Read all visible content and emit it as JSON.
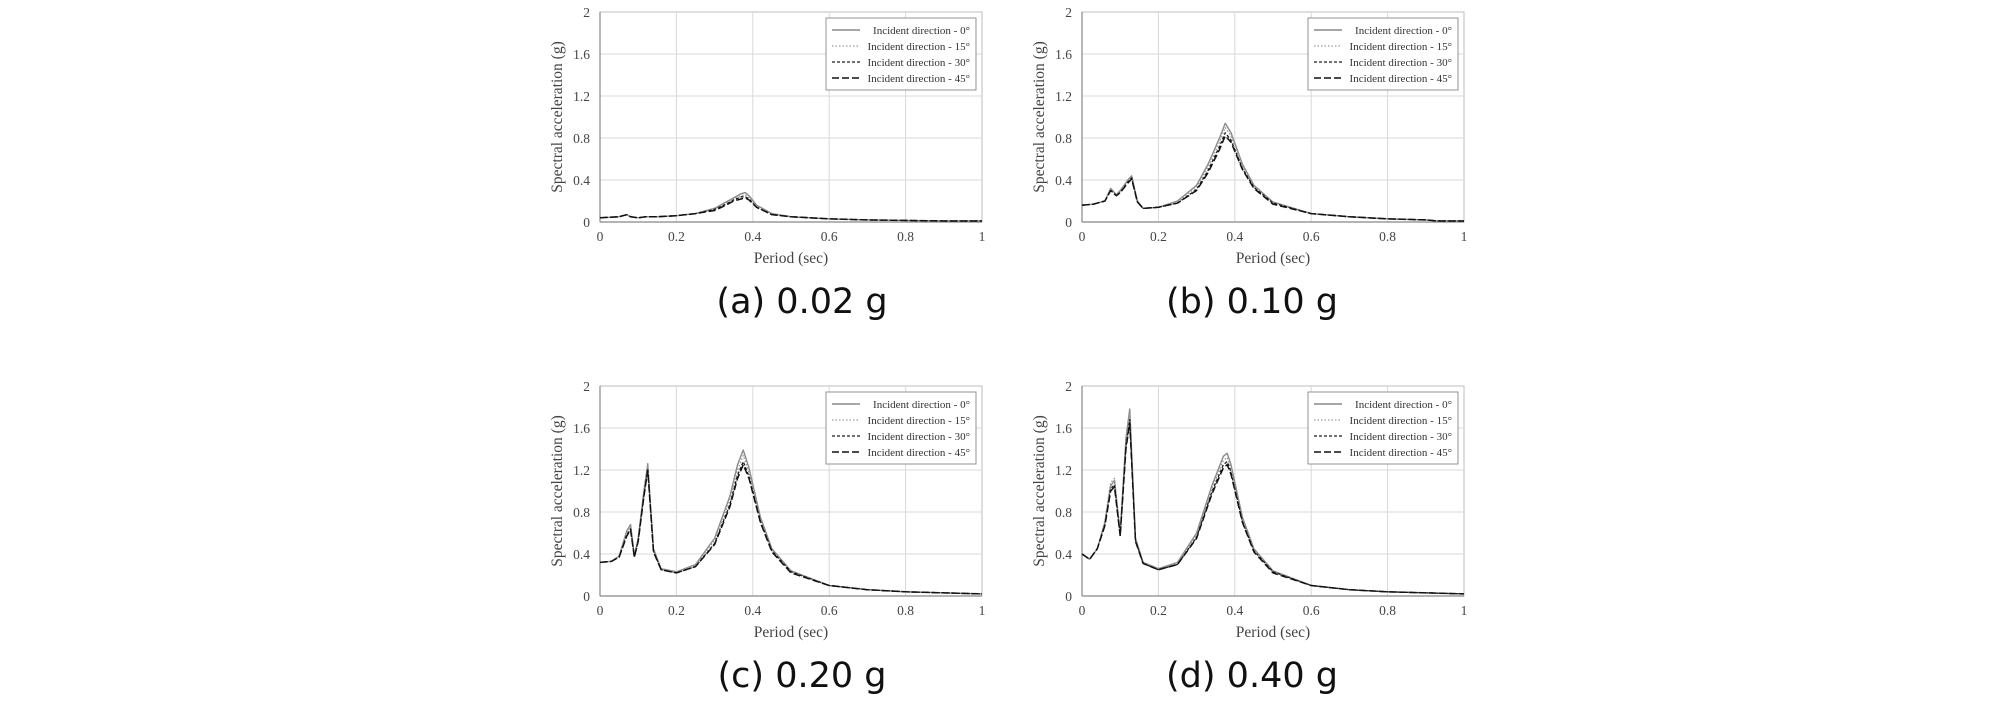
{
  "figure": {
    "captions": [
      "(a) 0.02 g",
      "(b) 0.10 g",
      "(c) 0.20 g",
      "(d) 0.40 g"
    ]
  },
  "chart_data": [
    {
      "type": "line",
      "caption": "(a) 0.02 g",
      "xlabel": "Period (sec)",
      "ylabel": "Spectral acceleration (g)",
      "xlim": [
        0,
        1
      ],
      "ylim": [
        0,
        2
      ],
      "xticks": [
        "0",
        "0.2",
        "0.4",
        "0.6",
        "0.8",
        "1"
      ],
      "yticks": [
        "0",
        "0.4",
        "0.8",
        "1.2",
        "1.6",
        "2"
      ],
      "grid": true,
      "legend_position": "top-right",
      "series": [
        {
          "name": "Incident direction - 0°",
          "style": "solid-gray",
          "x": [
            0,
            0.05,
            0.07,
            0.08,
            0.1,
            0.12,
            0.15,
            0.2,
            0.25,
            0.3,
            0.33,
            0.35,
            0.37,
            0.38,
            0.39,
            0.41,
            0.45,
            0.5,
            0.6,
            0.7,
            0.8,
            0.9,
            1.0
          ],
          "y": [
            0.04,
            0.05,
            0.07,
            0.05,
            0.04,
            0.05,
            0.05,
            0.06,
            0.08,
            0.13,
            0.19,
            0.23,
            0.27,
            0.28,
            0.25,
            0.16,
            0.08,
            0.05,
            0.03,
            0.02,
            0.015,
            0.01,
            0.01
          ]
        },
        {
          "name": "Incident direction - 15°",
          "style": "dotted-gray",
          "x": [
            0,
            0.05,
            0.07,
            0.08,
            0.1,
            0.12,
            0.15,
            0.2,
            0.25,
            0.3,
            0.33,
            0.35,
            0.37,
            0.38,
            0.39,
            0.41,
            0.45,
            0.5,
            0.6,
            0.7,
            0.8,
            0.9,
            1.0
          ],
          "y": [
            0.04,
            0.05,
            0.07,
            0.05,
            0.04,
            0.05,
            0.05,
            0.06,
            0.08,
            0.12,
            0.18,
            0.22,
            0.25,
            0.26,
            0.23,
            0.15,
            0.08,
            0.05,
            0.03,
            0.02,
            0.015,
            0.01,
            0.01
          ]
        },
        {
          "name": "Incident direction - 30°",
          "style": "dashed-black",
          "x": [
            0,
            0.05,
            0.07,
            0.08,
            0.1,
            0.12,
            0.15,
            0.2,
            0.25,
            0.3,
            0.33,
            0.35,
            0.37,
            0.38,
            0.39,
            0.41,
            0.45,
            0.5,
            0.6,
            0.7,
            0.8,
            0.9,
            1.0
          ],
          "y": [
            0.04,
            0.05,
            0.07,
            0.05,
            0.04,
            0.05,
            0.05,
            0.06,
            0.08,
            0.12,
            0.17,
            0.21,
            0.24,
            0.24,
            0.22,
            0.14,
            0.07,
            0.05,
            0.03,
            0.02,
            0.015,
            0.01,
            0.01
          ]
        },
        {
          "name": "Incident direction - 45°",
          "style": "longdash-black",
          "x": [
            0,
            0.05,
            0.07,
            0.08,
            0.1,
            0.12,
            0.15,
            0.2,
            0.25,
            0.3,
            0.33,
            0.35,
            0.37,
            0.38,
            0.39,
            0.41,
            0.45,
            0.5,
            0.6,
            0.7,
            0.8,
            0.9,
            1.0
          ],
          "y": [
            0.04,
            0.05,
            0.07,
            0.05,
            0.04,
            0.05,
            0.05,
            0.06,
            0.08,
            0.11,
            0.16,
            0.2,
            0.22,
            0.23,
            0.21,
            0.14,
            0.07,
            0.05,
            0.03,
            0.02,
            0.015,
            0.01,
            0.01
          ]
        }
      ]
    },
    {
      "type": "line",
      "caption": "(b) 0.10 g",
      "xlabel": "Period (sec)",
      "ylabel": "Spectral acceleration (g)",
      "xlim": [
        0,
        1
      ],
      "ylim": [
        0,
        2
      ],
      "xticks": [
        "0",
        "0.2",
        "0.4",
        "0.6",
        "0.8",
        "1"
      ],
      "yticks": [
        "0",
        "0.4",
        "0.8",
        "1.2",
        "1.6",
        "2"
      ],
      "grid": true,
      "legend_position": "top-right",
      "series": [
        {
          "name": "Incident direction - 0°",
          "style": "solid-gray",
          "x": [
            0,
            0.03,
            0.06,
            0.075,
            0.09,
            0.1,
            0.12,
            0.13,
            0.145,
            0.16,
            0.2,
            0.25,
            0.3,
            0.33,
            0.36,
            0.375,
            0.39,
            0.42,
            0.45,
            0.5,
            0.6,
            0.7,
            0.8,
            0.9,
            0.93,
            1.0
          ],
          "y": [
            0.16,
            0.17,
            0.2,
            0.32,
            0.26,
            0.3,
            0.4,
            0.44,
            0.2,
            0.13,
            0.14,
            0.2,
            0.35,
            0.55,
            0.8,
            0.94,
            0.85,
            0.55,
            0.35,
            0.19,
            0.08,
            0.05,
            0.03,
            0.02,
            0.01,
            0.01
          ]
        },
        {
          "name": "Incident direction - 15°",
          "style": "dotted-gray",
          "x": [
            0,
            0.03,
            0.06,
            0.075,
            0.09,
            0.1,
            0.12,
            0.13,
            0.145,
            0.16,
            0.2,
            0.25,
            0.3,
            0.33,
            0.36,
            0.375,
            0.39,
            0.42,
            0.45,
            0.5,
            0.6,
            0.7,
            0.8,
            0.9,
            0.93,
            1.0
          ],
          "y": [
            0.16,
            0.17,
            0.2,
            0.31,
            0.26,
            0.29,
            0.39,
            0.43,
            0.2,
            0.13,
            0.14,
            0.19,
            0.33,
            0.52,
            0.76,
            0.9,
            0.82,
            0.53,
            0.34,
            0.18,
            0.08,
            0.05,
            0.03,
            0.02,
            0.01,
            0.01
          ]
        },
        {
          "name": "Incident direction - 30°",
          "style": "dashed-black",
          "x": [
            0,
            0.03,
            0.06,
            0.075,
            0.09,
            0.1,
            0.12,
            0.13,
            0.145,
            0.16,
            0.2,
            0.25,
            0.3,
            0.33,
            0.36,
            0.375,
            0.39,
            0.42,
            0.45,
            0.5,
            0.6,
            0.7,
            0.8,
            0.9,
            0.93,
            1.0
          ],
          "y": [
            0.16,
            0.17,
            0.2,
            0.3,
            0.25,
            0.28,
            0.38,
            0.42,
            0.19,
            0.13,
            0.14,
            0.18,
            0.31,
            0.49,
            0.72,
            0.85,
            0.78,
            0.51,
            0.33,
            0.18,
            0.08,
            0.05,
            0.03,
            0.02,
            0.01,
            0.01
          ]
        },
        {
          "name": "Incident direction - 45°",
          "style": "longdash-black",
          "x": [
            0,
            0.03,
            0.06,
            0.075,
            0.09,
            0.1,
            0.12,
            0.13,
            0.145,
            0.16,
            0.2,
            0.25,
            0.3,
            0.33,
            0.36,
            0.375,
            0.39,
            0.42,
            0.45,
            0.5,
            0.6,
            0.7,
            0.8,
            0.9,
            0.93,
            1.0
          ],
          "y": [
            0.16,
            0.17,
            0.2,
            0.3,
            0.25,
            0.28,
            0.37,
            0.41,
            0.19,
            0.13,
            0.14,
            0.18,
            0.3,
            0.47,
            0.69,
            0.82,
            0.76,
            0.5,
            0.32,
            0.17,
            0.08,
            0.05,
            0.03,
            0.02,
            0.01,
            0.01
          ]
        }
      ]
    },
    {
      "type": "line",
      "caption": "(c) 0.20 g",
      "xlabel": "Period (sec)",
      "ylabel": "Spectral acceleration (g)",
      "xlim": [
        0,
        1
      ],
      "ylim": [
        0,
        2
      ],
      "xticks": [
        "0",
        "0.2",
        "0.4",
        "0.6",
        "0.8",
        "1"
      ],
      "yticks": [
        "0",
        "0.4",
        "0.8",
        "1.2",
        "1.6",
        "2"
      ],
      "grid": true,
      "legend_position": "top-right",
      "series": [
        {
          "name": "Incident direction - 0°",
          "style": "solid-gray",
          "x": [
            0,
            0.03,
            0.05,
            0.07,
            0.08,
            0.09,
            0.1,
            0.115,
            0.125,
            0.14,
            0.16,
            0.2,
            0.25,
            0.3,
            0.34,
            0.36,
            0.375,
            0.39,
            0.42,
            0.45,
            0.5,
            0.6,
            0.7,
            0.8,
            0.9,
            1.0
          ],
          "y": [
            0.32,
            0.33,
            0.38,
            0.62,
            0.68,
            0.38,
            0.55,
            1.0,
            1.26,
            0.45,
            0.26,
            0.23,
            0.3,
            0.55,
            0.95,
            1.25,
            1.39,
            1.22,
            0.75,
            0.45,
            0.24,
            0.1,
            0.06,
            0.04,
            0.03,
            0.02
          ]
        },
        {
          "name": "Incident direction - 15°",
          "style": "dotted-gray",
          "x": [
            0,
            0.03,
            0.05,
            0.07,
            0.08,
            0.09,
            0.1,
            0.115,
            0.125,
            0.14,
            0.16,
            0.2,
            0.25,
            0.3,
            0.34,
            0.36,
            0.375,
            0.39,
            0.42,
            0.45,
            0.5,
            0.6,
            0.7,
            0.8,
            0.9,
            1.0
          ],
          "y": [
            0.32,
            0.33,
            0.38,
            0.6,
            0.66,
            0.38,
            0.54,
            0.98,
            1.24,
            0.44,
            0.26,
            0.23,
            0.29,
            0.53,
            0.91,
            1.2,
            1.34,
            1.18,
            0.73,
            0.44,
            0.23,
            0.1,
            0.06,
            0.04,
            0.03,
            0.02
          ]
        },
        {
          "name": "Incident direction - 30°",
          "style": "dashed-black",
          "x": [
            0,
            0.03,
            0.05,
            0.07,
            0.08,
            0.09,
            0.1,
            0.115,
            0.125,
            0.14,
            0.16,
            0.2,
            0.25,
            0.3,
            0.34,
            0.36,
            0.375,
            0.39,
            0.42,
            0.45,
            0.5,
            0.6,
            0.7,
            0.8,
            0.9,
            1.0
          ],
          "y": [
            0.32,
            0.33,
            0.37,
            0.58,
            0.64,
            0.37,
            0.53,
            0.96,
            1.21,
            0.43,
            0.25,
            0.22,
            0.28,
            0.5,
            0.87,
            1.15,
            1.28,
            1.14,
            0.71,
            0.43,
            0.23,
            0.1,
            0.06,
            0.04,
            0.03,
            0.02
          ]
        },
        {
          "name": "Incident direction - 45°",
          "style": "longdash-black",
          "x": [
            0,
            0.03,
            0.05,
            0.07,
            0.08,
            0.09,
            0.1,
            0.115,
            0.125,
            0.14,
            0.16,
            0.2,
            0.25,
            0.3,
            0.34,
            0.36,
            0.375,
            0.39,
            0.42,
            0.45,
            0.5,
            0.6,
            0.7,
            0.8,
            0.9,
            1.0
          ],
          "y": [
            0.32,
            0.33,
            0.37,
            0.57,
            0.63,
            0.37,
            0.52,
            0.95,
            1.2,
            0.42,
            0.25,
            0.22,
            0.28,
            0.49,
            0.85,
            1.12,
            1.25,
            1.12,
            0.7,
            0.42,
            0.22,
            0.1,
            0.06,
            0.04,
            0.03,
            0.02
          ]
        }
      ]
    },
    {
      "type": "line",
      "caption": "(d) 0.40 g",
      "xlabel": "Period (sec)",
      "ylabel": "Spectral acceleration (g)",
      "xlim": [
        0,
        1
      ],
      "ylim": [
        0,
        2
      ],
      "xticks": [
        "0",
        "0.2",
        "0.4",
        "0.6",
        "0.8",
        "1"
      ],
      "yticks": [
        "0",
        "0.4",
        "0.8",
        "1.2",
        "1.6",
        "2"
      ],
      "grid": true,
      "legend_position": "top-right",
      "series": [
        {
          "name": "Incident direction - 0°",
          "style": "solid-gray",
          "x": [
            0,
            0.02,
            0.04,
            0.06,
            0.075,
            0.085,
            0.1,
            0.115,
            0.125,
            0.14,
            0.16,
            0.2,
            0.25,
            0.3,
            0.34,
            0.37,
            0.38,
            0.39,
            0.42,
            0.45,
            0.5,
            0.6,
            0.7,
            0.8,
            0.9,
            1.0
          ],
          "y": [
            0.4,
            0.35,
            0.45,
            0.7,
            1.05,
            1.1,
            0.6,
            1.5,
            1.78,
            0.55,
            0.32,
            0.26,
            0.32,
            0.6,
            1.05,
            1.33,
            1.36,
            1.25,
            0.75,
            0.45,
            0.24,
            0.1,
            0.06,
            0.04,
            0.03,
            0.02
          ]
        },
        {
          "name": "Incident direction - 15°",
          "style": "dotted-gray",
          "x": [
            0,
            0.02,
            0.04,
            0.06,
            0.075,
            0.085,
            0.1,
            0.115,
            0.125,
            0.14,
            0.16,
            0.2,
            0.25,
            0.3,
            0.34,
            0.37,
            0.38,
            0.39,
            0.42,
            0.45,
            0.5,
            0.6,
            0.7,
            0.8,
            0.9,
            1.0
          ],
          "y": [
            0.4,
            0.35,
            0.45,
            0.72,
            1.08,
            1.12,
            0.6,
            1.45,
            1.73,
            0.54,
            0.32,
            0.26,
            0.31,
            0.58,
            1.02,
            1.29,
            1.32,
            1.21,
            0.73,
            0.44,
            0.23,
            0.1,
            0.06,
            0.04,
            0.03,
            0.02
          ]
        },
        {
          "name": "Incident direction - 30°",
          "style": "dashed-black",
          "x": [
            0,
            0.02,
            0.04,
            0.06,
            0.075,
            0.085,
            0.1,
            0.115,
            0.125,
            0.14,
            0.16,
            0.2,
            0.25,
            0.3,
            0.34,
            0.37,
            0.38,
            0.39,
            0.42,
            0.45,
            0.5,
            0.6,
            0.7,
            0.8,
            0.9,
            1.0
          ],
          "y": [
            0.4,
            0.35,
            0.45,
            0.68,
            1.02,
            1.06,
            0.58,
            1.42,
            1.68,
            0.53,
            0.31,
            0.25,
            0.3,
            0.56,
            0.99,
            1.25,
            1.28,
            1.18,
            0.71,
            0.43,
            0.23,
            0.1,
            0.06,
            0.04,
            0.03,
            0.02
          ]
        },
        {
          "name": "Incident direction - 45°",
          "style": "longdash-black",
          "x": [
            0,
            0.02,
            0.04,
            0.06,
            0.075,
            0.085,
            0.1,
            0.115,
            0.125,
            0.14,
            0.16,
            0.2,
            0.25,
            0.3,
            0.34,
            0.37,
            0.38,
            0.39,
            0.42,
            0.45,
            0.5,
            0.6,
            0.7,
            0.8,
            0.9,
            1.0
          ],
          "y": [
            0.4,
            0.35,
            0.45,
            0.67,
            1.0,
            1.04,
            0.57,
            1.4,
            1.65,
            0.52,
            0.31,
            0.25,
            0.3,
            0.55,
            0.97,
            1.22,
            1.25,
            1.16,
            0.7,
            0.42,
            0.22,
            0.1,
            0.06,
            0.04,
            0.03,
            0.02
          ]
        }
      ]
    }
  ]
}
